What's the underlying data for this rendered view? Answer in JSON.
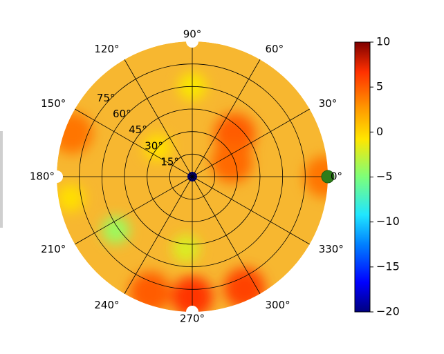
{
  "chart_data": {
    "type": "heatmap",
    "projection": "polar",
    "title": "",
    "ylabel_partial": "",
    "angular_ticks": [
      {
        "deg": 0,
        "label": "0°"
      },
      {
        "deg": 30,
        "label": "30°"
      },
      {
        "deg": 60,
        "label": "60°"
      },
      {
        "deg": 90,
        "label": "90°"
      },
      {
        "deg": 120,
        "label": "120°"
      },
      {
        "deg": 150,
        "label": "150°"
      },
      {
        "deg": 180,
        "label": "180°"
      },
      {
        "deg": 210,
        "label": "210°"
      },
      {
        "deg": 240,
        "label": "240°"
      },
      {
        "deg": 270,
        "label": "270°"
      },
      {
        "deg": 300,
        "label": "300°"
      },
      {
        "deg": 330,
        "label": "330°"
      }
    ],
    "radial_ticks": [
      {
        "value": 15,
        "label": "15°"
      },
      {
        "value": 30,
        "label": "30°"
      },
      {
        "value": 45,
        "label": "45°"
      },
      {
        "value": 60,
        "label": "60°"
      },
      {
        "value": 75,
        "label": "75°"
      }
    ],
    "radial_range": [
      0,
      90
    ],
    "grid": true,
    "colormap": "jet-like (dark blue → cyan → yellow → orange → dark red)",
    "colorbar": {
      "range": [
        -20,
        10
      ],
      "ticks": [
        10,
        5,
        0,
        -5,
        -10,
        -15,
        -20
      ],
      "tick_labels": [
        "10",
        "5",
        "0",
        "−5",
        "−10",
        "−15",
        "−20"
      ],
      "placement": "right"
    },
    "value_field_description": "mostly 0 to 3 (yellow-orange); hot spots ~5–7 near azimuth 270° at outer radius and ~60–70° elevation; dip to about −4 near azimuth 215° around radius 60°; center near −20",
    "hotspots": [
      {
        "az": 270,
        "r": 80,
        "value": 6.5
      },
      {
        "az": 295,
        "r": 82,
        "value": 6
      },
      {
        "az": 250,
        "r": 82,
        "value": 5
      },
      {
        "az": 45,
        "r": 40,
        "value": 5
      },
      {
        "az": 20,
        "r": 28,
        "value": 4.5
      },
      {
        "az": 0,
        "r": 88,
        "value": 4
      },
      {
        "az": 160,
        "r": 85,
        "value": 4
      },
      {
        "az": 215,
        "r": 62,
        "value": -4
      },
      {
        "az": 265,
        "r": 48,
        "value": -2
      },
      {
        "az": 90,
        "r": 60,
        "value": -1
      },
      {
        "az": 190,
        "r": 82,
        "value": -0.5
      },
      {
        "az": 140,
        "r": 30,
        "value": -0.5
      },
      {
        "az": 0,
        "r": 0,
        "value": -20
      }
    ],
    "markers": [
      {
        "az": 0,
        "r": 90,
        "color": "#2e7d1a"
      },
      {
        "az": 90,
        "r": 90,
        "color": "#ffffff"
      },
      {
        "az": 180,
        "r": 90,
        "color": "#ffffff"
      },
      {
        "az": 270,
        "r": 90,
        "color": "#ffffff"
      }
    ]
  }
}
